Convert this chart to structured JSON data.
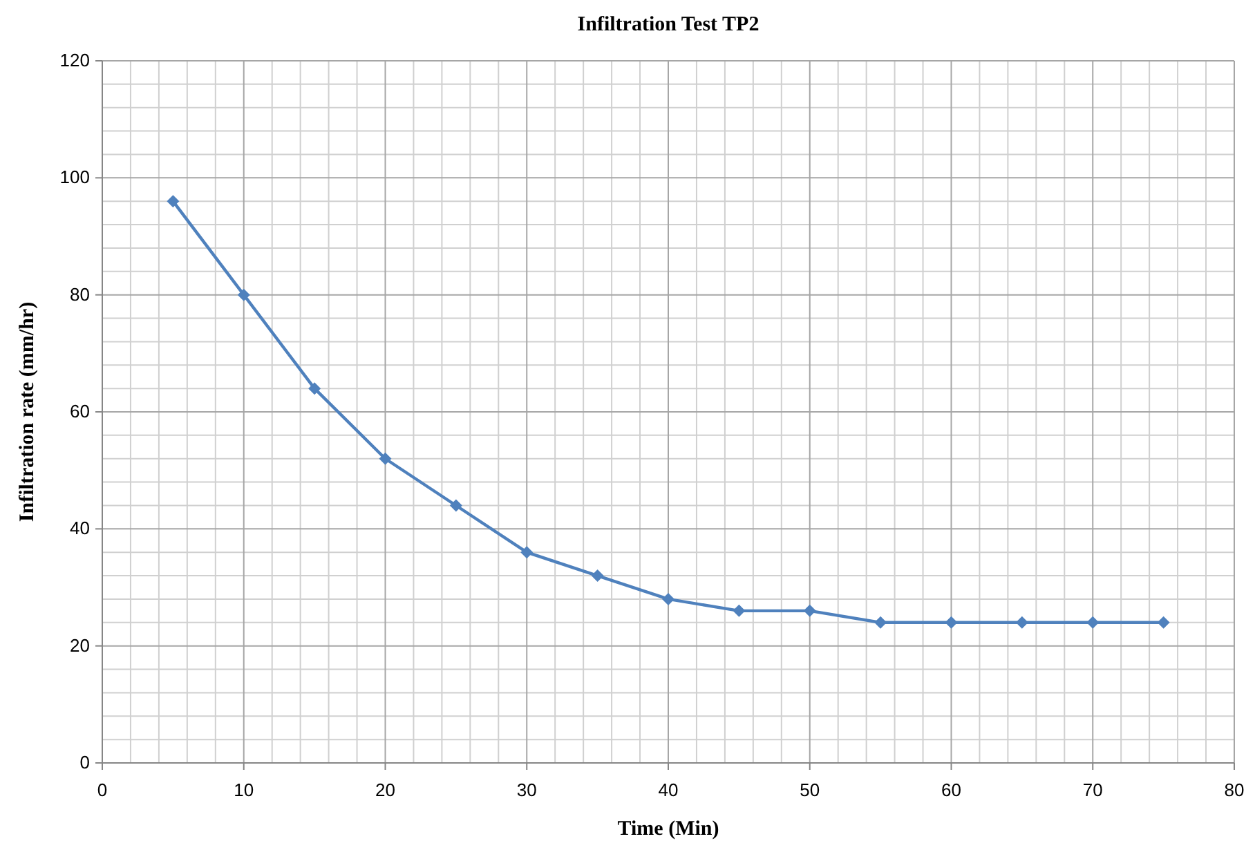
{
  "chart_data": {
    "type": "line",
    "title": "Infiltration  Test TP2",
    "xlabel": "Time (Min)",
    "ylabel": "Infiltration rate (mm/hr)",
    "x": [
      5,
      10,
      15,
      20,
      25,
      30,
      35,
      40,
      45,
      50,
      55,
      60,
      65,
      70,
      75
    ],
    "series": [
      {
        "color": "#4f81bd",
        "values": [
          96,
          80,
          64,
          52,
          44,
          36,
          32,
          28,
          26,
          26,
          24,
          24,
          24,
          24,
          24
        ]
      }
    ],
    "xlim": [
      0,
      80
    ],
    "xticks": [
      0,
      10,
      20,
      30,
      40,
      50,
      60,
      70,
      80
    ],
    "ylim": [
      0,
      120
    ],
    "yticks": [
      0,
      20,
      40,
      60,
      80,
      100,
      120
    ],
    "grid": true,
    "marker": "diamond",
    "line_style": "solid"
  }
}
